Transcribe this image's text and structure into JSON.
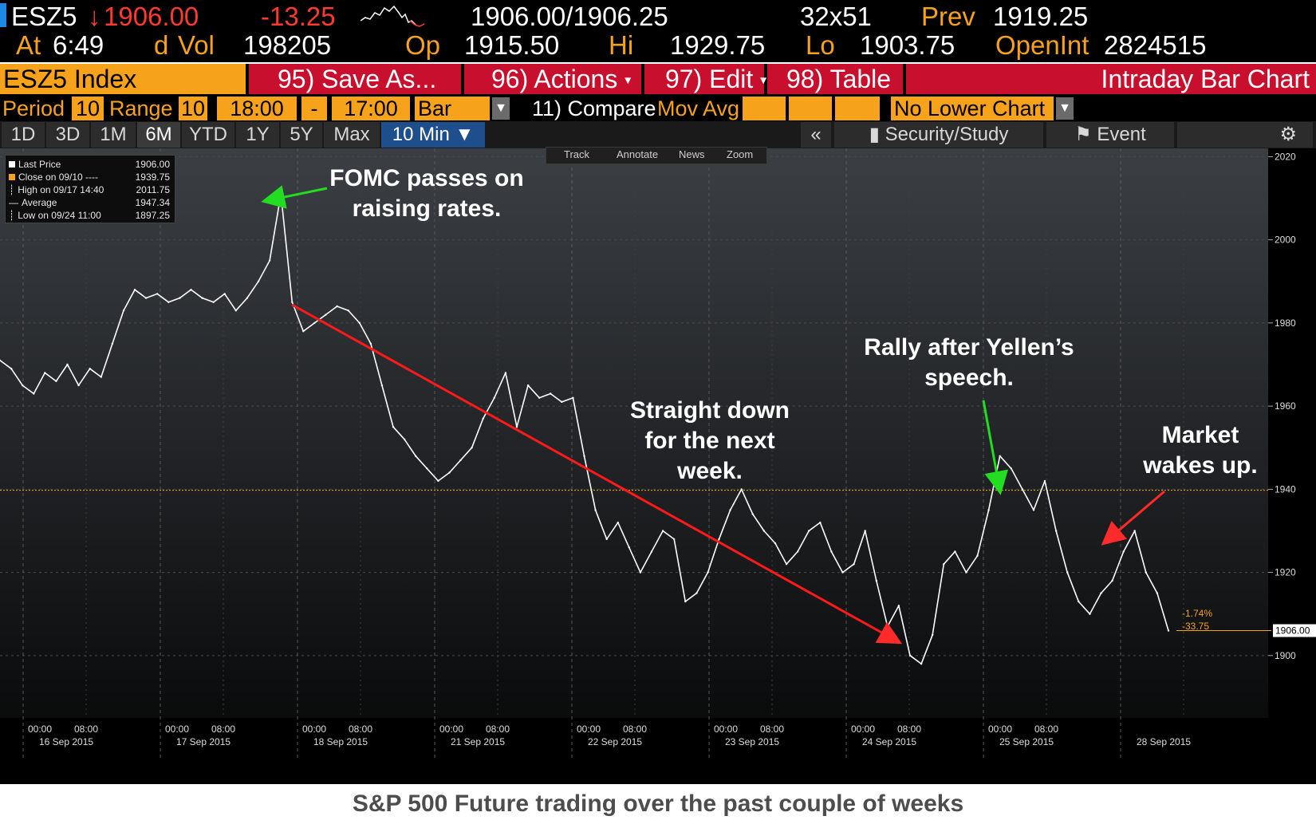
{
  "header": {
    "ticker": "ESZ5",
    "arrow": "↓",
    "last": "1906.00",
    "change": "-13.25",
    "bid_ask": "1906.00/1906.25",
    "size": "32x51",
    "prev_label": "Prev",
    "prev_value": "1919.25",
    "at_label": "At",
    "time": "6:49",
    "d_label": "d",
    "vol_label": "Vol",
    "vol_value": "198205",
    "op_label": "Op",
    "op_value": "1915.50",
    "hi_label": "Hi",
    "hi_value": "1929.75",
    "lo_label": "Lo",
    "lo_value": "1903.75",
    "openint_label": "OpenInt",
    "openint_value": "2824515"
  },
  "menu": {
    "security": "ESZ5 Index",
    "save_as": "95) Save As...",
    "actions": "96) Actions",
    "edit": "97) Edit",
    "table": "98) Table",
    "title": "Intraday Bar Chart"
  },
  "options": {
    "period_label": "Period",
    "period_value": "10",
    "range_label": "Range",
    "range_value": "10",
    "start_time": "18:00",
    "dash": "-",
    "end_time": "17:00",
    "chart_type": "Bar",
    "compare": "11) Compare",
    "mov_avg": "Mov Avg",
    "lower_chart": "No Lower Chart"
  },
  "tabs": {
    "t1d": "1D",
    "t3d": "3D",
    "t1m": "1M",
    "t6m": "6M",
    "tytd": "YTD",
    "t1y": "1Y",
    "t5y": "5Y",
    "tmax": "Max",
    "interval": "10 Min ▼",
    "collapse": "«",
    "security_study": "Security/Study",
    "event": "Event"
  },
  "legend": {
    "last_label": "Last Price",
    "last_value": "1906.00",
    "close_label": "Close on 09/10 ----",
    "close_value": "1939.75",
    "high_label": "High on 09/17 14:40",
    "high_value": "2011.75",
    "avg_label": "Average",
    "avg_value": "1947.34",
    "low_label": "Low on 09/24 11:00",
    "low_value": "1897.25"
  },
  "tools": {
    "track": "Track",
    "annotate": "Annotate",
    "news": "News",
    "zoom": "Zoom"
  },
  "annotations": {
    "fomc_1": "FOMC passes on",
    "fomc_2": "raising rates.",
    "down_1": "Straight down",
    "down_2": "for the next",
    "down_3": "week.",
    "rally_1": "Rally after Yellen’s",
    "rally_2": "speech.",
    "wake_1": "Market",
    "wake_2": "wakes up."
  },
  "price_tags": {
    "pct": "-1.74%",
    "pts": "-33.75",
    "last_tag": "1906.00"
  },
  "caption": "S&P 500 Future trading over the past couple of weeks",
  "colors": {
    "amber": "#f7a21b",
    "red_menu": "#c8102e",
    "trend": "#ff1a1a",
    "arrow_green": "#22dd22",
    "arrow_red": "#ff2a2a",
    "price": "#ffffff"
  },
  "chart_data": {
    "type": "line",
    "title": "",
    "xlabel": "",
    "ylabel": "",
    "ylim": [
      1885,
      2022
    ],
    "yticks": [
      1900,
      1920,
      1940,
      1960,
      1980,
      2000,
      2020
    ],
    "x_time_labels": [
      "00:00",
      "08:00",
      "00:00",
      "08:00",
      "00:00",
      "08:00",
      "00:00",
      "08:00",
      "00:00",
      "08:00",
      "00:00",
      "08:00",
      "00:00",
      "08:00",
      "00:00",
      "08:00"
    ],
    "x_date_labels": [
      "16 Sep 2015",
      "17 Sep 2015",
      "18 Sep 2015",
      "21 Sep 2015",
      "22 Sep 2015",
      "23 Sep 2015",
      "24 Sep 2015",
      "25 Sep 2015",
      "28 Sep 2015"
    ],
    "reference_line": 1939.75,
    "series": [
      {
        "values": [
          1971,
          1969,
          1965,
          1963,
          1968,
          1966,
          1970,
          1965,
          1969,
          1967,
          1975,
          1983,
          1988,
          1986,
          1987,
          1985,
          1986,
          1988,
          1986,
          1985,
          1987,
          1983,
          1986,
          1990,
          1995,
          2011,
          1985,
          1978,
          1980,
          1982,
          1984,
          1983,
          1980,
          1975,
          1965,
          1955,
          1952,
          1948,
          1945,
          1942,
          1944,
          1947,
          1950,
          1957,
          1962,
          1968,
          1955,
          1965,
          1962,
          1963,
          1961,
          1962,
          1948,
          1935,
          1928,
          1932,
          1926,
          1920,
          1925,
          1930,
          1928,
          1913,
          1915,
          1920,
          1928,
          1935,
          1940,
          1934,
          1930,
          1927,
          1922,
          1925,
          1930,
          1932,
          1925,
          1920,
          1922,
          1930,
          1918,
          1907,
          1912,
          1900,
          1898,
          1905,
          1922,
          1925,
          1920,
          1924,
          1935,
          1948,
          1945,
          1940,
          1935,
          1942,
          1930,
          1920,
          1913,
          1910,
          1915,
          1918,
          1925,
          1930,
          1920,
          1915,
          1906
        ]
      }
    ]
  }
}
